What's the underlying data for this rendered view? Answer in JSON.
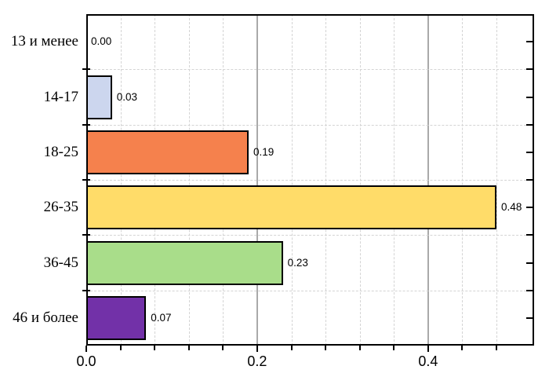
{
  "chart_data": {
    "type": "bar",
    "orientation": "horizontal",
    "title": "",
    "xlabel": "",
    "ylabel": "",
    "categories": [
      "13 и менее",
      "14-17",
      "18-25",
      "26-35",
      "36-45",
      "46 и более"
    ],
    "values": [
      0.0,
      0.03,
      0.19,
      0.48,
      0.23,
      0.07
    ],
    "value_labels": [
      "0.00",
      "0.03",
      "0.19",
      "0.48",
      "0.23",
      "0.07"
    ],
    "bar_colors": [
      null,
      "#ccd6ee",
      "#f5814d",
      "#ffdc69",
      "#a9dd8a",
      "#7231a8"
    ],
    "xlim": [
      0,
      0.524
    ],
    "x_major_ticks": [
      0,
      0.2,
      0.4
    ],
    "x_major_tick_labels": [
      "0.0",
      "0.2",
      "0.4"
    ],
    "x_minor_tick_step": 0.04,
    "grid": {
      "vertical_minor": "dashed",
      "vertical_major": "solid",
      "horizontal_row_boundaries": "dashed"
    },
    "legend": "none",
    "styles": {
      "background": "#ffffff",
      "frame_color": "#000000",
      "bar_border_color": "#000000",
      "minor_grid_color": "#d4d4d4",
      "major_grid_color": "#a9a9a9",
      "text_color": "#000000"
    }
  }
}
